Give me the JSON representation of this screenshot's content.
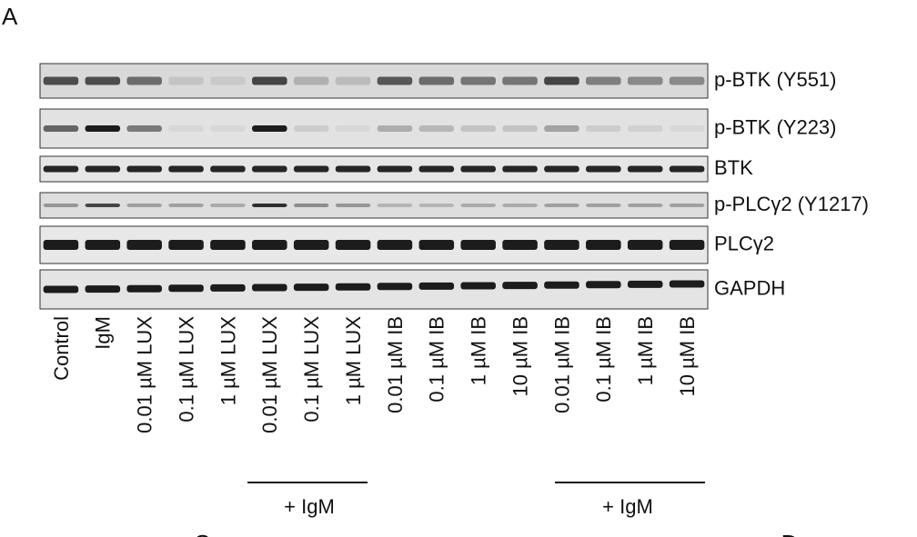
{
  "panel_label": "A",
  "blots": [
    "p-BTK (Y551)",
    "p-BTK (Y223)",
    "BTK",
    "p-PLCγ2 (Y1217)",
    "PLCγ2",
    "GAPDH"
  ],
  "lanes": [
    "Control",
    "IgM",
    "0.01 µM LUX",
    "0.1 µM LUX",
    "1 µM LUX",
    "0.01 µM LUX",
    "0.1 µM LUX",
    "1 µM LUX",
    "0.01 µM IB",
    "0.1 µM IB",
    "1 µM IB",
    "10 µM IB",
    "0.01 µM IB",
    "0.1 µM IB",
    "1 µM IB",
    "10 µM IB"
  ],
  "groups": [
    "+ IgM",
    "+ IgM"
  ],
  "next_panels": [
    "C",
    "D"
  ]
}
